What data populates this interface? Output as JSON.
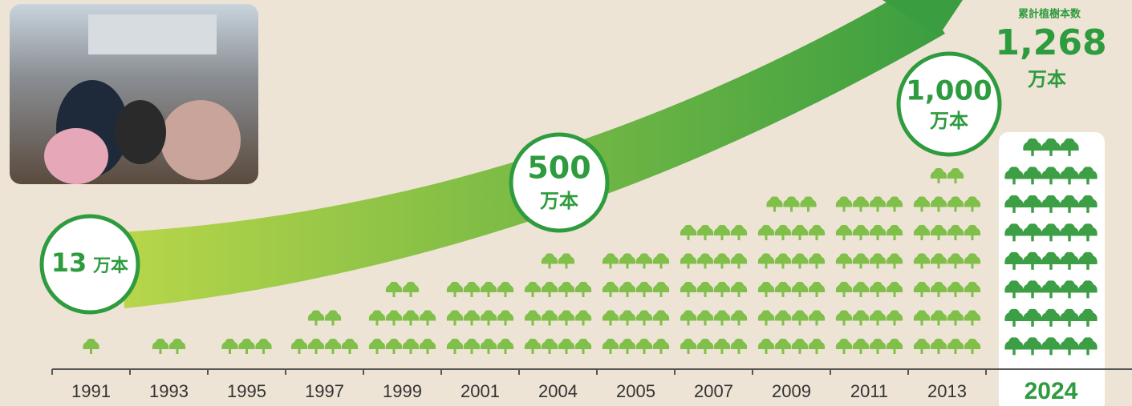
{
  "chart_data": {
    "type": "pictogram",
    "categories": [
      "1991",
      "1993",
      "1995",
      "1997",
      "1999",
      "2001",
      "2004",
      "2005",
      "2007",
      "2009",
      "2011",
      "2013",
      "2024"
    ],
    "values": [
      1,
      2,
      3,
      6,
      10,
      12,
      14,
      16,
      20,
      23,
      24,
      26,
      38
    ],
    "color": "#80c04a",
    "highlight_color": "#3c9e45",
    "annotations": [
      {
        "number": "13",
        "unit": "万本"
      },
      {
        "number": "500",
        "unit": "万本"
      },
      {
        "number": "1,000",
        "unit": "万本"
      }
    ],
    "total": {
      "label": "累計植樹本数",
      "number": "1,268",
      "unit": "万本"
    }
  }
}
